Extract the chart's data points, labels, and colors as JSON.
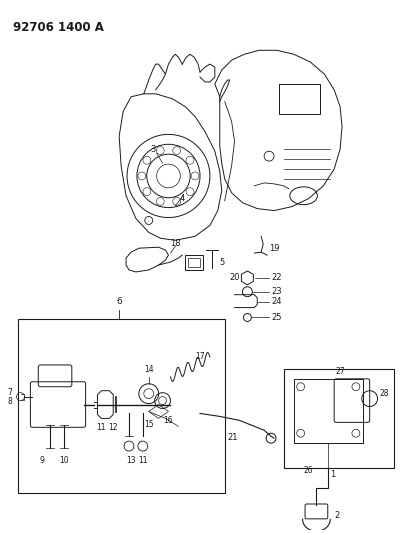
{
  "title": "92706 1400 A",
  "bg": "#ffffff",
  "lc": "#1a1a1a",
  "figsize": [
    4.05,
    5.33
  ],
  "dpi": 100
}
